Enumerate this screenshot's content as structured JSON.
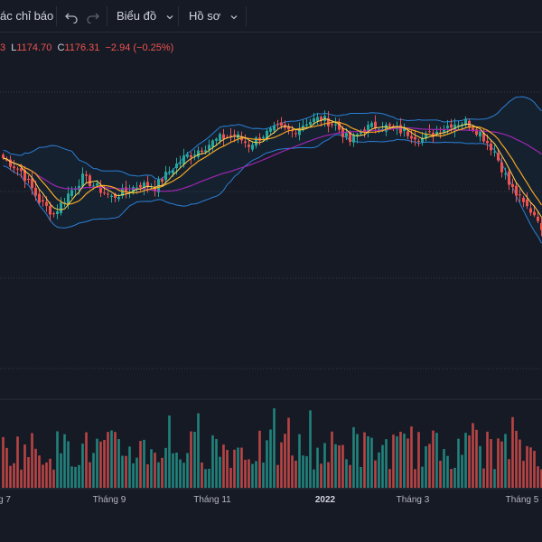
{
  "toolbar": {
    "indicators_label": "ác chỉ báo",
    "chart_label": "Biểu đồ",
    "profile_label": "Hồ sơ",
    "undo_icon": "undo-icon",
    "redo_icon": "redo-icon",
    "chevron_icon": "chevron-down-icon"
  },
  "ohlc": {
    "open_tail": "3",
    "low_label": "L",
    "low_value": "1174.70",
    "close_label": "C",
    "close_value": "1176.31",
    "change": "−2.94 (−0.25%)"
  },
  "colors": {
    "background": "#161a25",
    "up": "#26a69a",
    "down": "#ef5350",
    "bollinger": "#2a7fd4",
    "ma_fast": "#f5a623",
    "ma_slow": "#9c27b0",
    "ma_fast2": "#ffd54f"
  },
  "chart_data": {
    "type": "candlestick",
    "xlabel": "",
    "ylabel": "",
    "x_ticks": [
      {
        "label": "g 7",
        "bold": false
      },
      {
        "label": "Tháng 9",
        "bold": false
      },
      {
        "label": "Tháng 11",
        "bold": false
      },
      {
        "label": "2022",
        "bold": true
      },
      {
        "label": "Tháng 3",
        "bold": false
      },
      {
        "label": "Tháng 5",
        "bold": false
      }
    ],
    "price_range": [
      1140,
      1560
    ],
    "close_anchors": [
      [
        0,
        1460
      ],
      [
        5,
        1440
      ],
      [
        10,
        1395
      ],
      [
        14,
        1375
      ],
      [
        18,
        1405
      ],
      [
        22,
        1430
      ],
      [
        26,
        1415
      ],
      [
        30,
        1400
      ],
      [
        34,
        1410
      ],
      [
        38,
        1420
      ],
      [
        42,
        1415
      ],
      [
        46,
        1440
      ],
      [
        50,
        1460
      ],
      [
        55,
        1475
      ],
      [
        60,
        1490
      ],
      [
        64,
        1495
      ],
      [
        68,
        1480
      ],
      [
        72,
        1495
      ],
      [
        76,
        1505
      ],
      [
        80,
        1500
      ],
      [
        84,
        1515
      ],
      [
        88,
        1520
      ],
      [
        92,
        1510
      ],
      [
        96,
        1485
      ],
      [
        100,
        1505
      ],
      [
        104,
        1510
      ],
      [
        108,
        1505
      ],
      [
        112,
        1498
      ],
      [
        116,
        1490
      ],
      [
        120,
        1500
      ],
      [
        124,
        1512
      ],
      [
        128,
        1515
      ],
      [
        132,
        1498
      ],
      [
        136,
        1470
      ],
      [
        140,
        1420
      ],
      [
        144,
        1390
      ],
      [
        148,
        1370
      ],
      [
        150,
        1320
      ]
    ]
  }
}
